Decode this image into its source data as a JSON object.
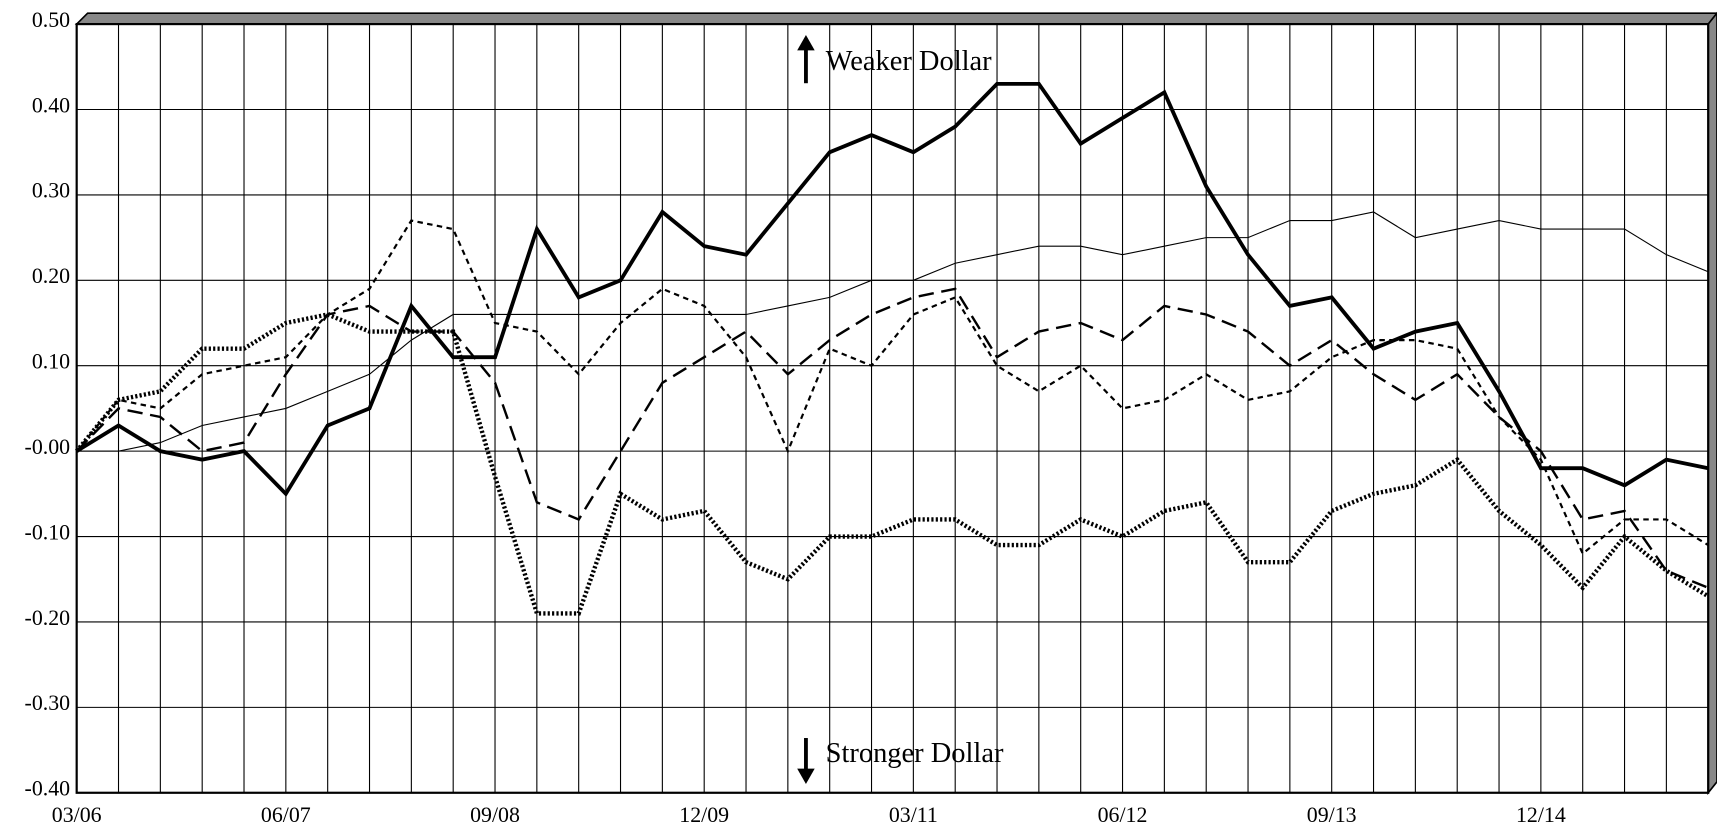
{
  "chart_data": {
    "type": "line",
    "categories": [
      "03/06",
      null,
      null,
      null,
      null,
      "06/07",
      null,
      null,
      null,
      null,
      "09/08",
      null,
      null,
      null,
      null,
      "12/09",
      null,
      null,
      null,
      null,
      "03/11",
      null,
      null,
      null,
      null,
      "06/12",
      null,
      null,
      null,
      null,
      "09/13",
      null,
      null,
      null,
      null,
      "12/14",
      null,
      null,
      null,
      null
    ],
    "ylim": [
      -0.4,
      0.5
    ],
    "yticks": [
      {
        "value": -0.4,
        "label": "-0.40"
      },
      {
        "value": -0.3,
        "label": "-0.30"
      },
      {
        "value": -0.2,
        "label": "-0.20"
      },
      {
        "value": -0.1,
        "label": "-0.10"
      },
      {
        "value": 0,
        "label": "-0.00"
      },
      {
        "value": 0.1,
        "label": "0.10"
      },
      {
        "value": 0.2,
        "label": "0.20"
      },
      {
        "value": 0.3,
        "label": "0.30"
      },
      {
        "value": 0.4,
        "label": "0.40"
      },
      {
        "value": 0.5,
        "label": "0.50"
      }
    ],
    "grid": true,
    "annotations": [
      "Weaker Dollar",
      "Stronger Dollar"
    ],
    "series": [
      {
        "color": "#000000",
        "width": 3.5,
        "dash": "none",
        "values": [
          0,
          0.03,
          0,
          -0.01,
          0,
          -0.05,
          0.03,
          0.05,
          0.17,
          0.11,
          0.11,
          0.26,
          0.18,
          0.2,
          0.28,
          0.24,
          0.23,
          0.29,
          0.35,
          0.37,
          0.35,
          0.38,
          0.43,
          0.43,
          0.36,
          0.39,
          0.42,
          0.31,
          0.23,
          0.17,
          0.18,
          0.12,
          0.14,
          0.15,
          0.07,
          -0.02,
          -0.02,
          -0.04,
          -0.01,
          -0.02
        ]
      },
      {
        "color": "#000000",
        "width": 1,
        "dash": "none",
        "values": [
          0,
          0,
          0.01,
          0.03,
          0.04,
          0.05,
          0.07,
          0.09,
          0.13,
          0.16,
          0.16,
          0.16,
          0.16,
          0.16,
          0.16,
          0.16,
          0.16,
          0.17,
          0.18,
          0.2,
          0.2,
          0.22,
          0.23,
          0.24,
          0.24,
          0.23,
          0.24,
          0.25,
          0.25,
          0.27,
          0.27,
          0.28,
          0.25,
          0.26,
          0.27,
          0.26,
          0.26,
          0.26,
          0.23,
          0.21
        ]
      },
      {
        "color": "#000000",
        "width": 2,
        "dash": "5,4",
        "values": [
          0,
          0.06,
          0.05,
          0.09,
          0.1,
          0.11,
          0.16,
          0.19,
          0.27,
          0.26,
          0.15,
          0.14,
          0.09,
          0.15,
          0.19,
          0.17,
          0.11,
          0,
          0.12,
          0.1,
          0.16,
          0.18,
          0.1,
          0.07,
          0.1,
          0.05,
          0.06,
          0.09,
          0.06,
          0.07,
          0.11,
          0.13,
          0.13,
          0.12,
          0.04,
          -0.01,
          -0.12,
          -0.08,
          -0.08,
          -0.11
        ]
      },
      {
        "color": "#000000",
        "width": 2.2,
        "dash": "14,7",
        "values": [
          0,
          0.05,
          0.04,
          0,
          0.01,
          0.09,
          0.16,
          0.17,
          0.14,
          0.14,
          0.08,
          -0.06,
          -0.08,
          0,
          0.08,
          0.11,
          0.14,
          0.09,
          0.13,
          0.16,
          0.18,
          0.19,
          0.11,
          0.14,
          0.15,
          0.13,
          0.17,
          0.16,
          0.14,
          0.1,
          0.13,
          0.09,
          0.06,
          0.09,
          0.04,
          0,
          -0.08,
          -0.07,
          -0.14,
          -0.16
        ]
      },
      {
        "color": "#000000",
        "width": 4,
        "dash": "2,2",
        "values": [
          0,
          0.06,
          0.07,
          0.12,
          0.12,
          0.15,
          0.16,
          0.14,
          0.14,
          0.14,
          -0.03,
          -0.19,
          -0.19,
          -0.05,
          -0.08,
          -0.07,
          -0.13,
          -0.15,
          -0.1,
          -0.1,
          -0.08,
          -0.08,
          -0.11,
          -0.11,
          -0.08,
          -0.1,
          -0.07,
          -0.06,
          -0.13,
          -0.13,
          -0.07,
          -0.05,
          -0.04,
          -0.01,
          -0.07,
          -0.11,
          -0.16,
          -0.1,
          -0.14,
          -0.17
        ]
      }
    ]
  }
}
